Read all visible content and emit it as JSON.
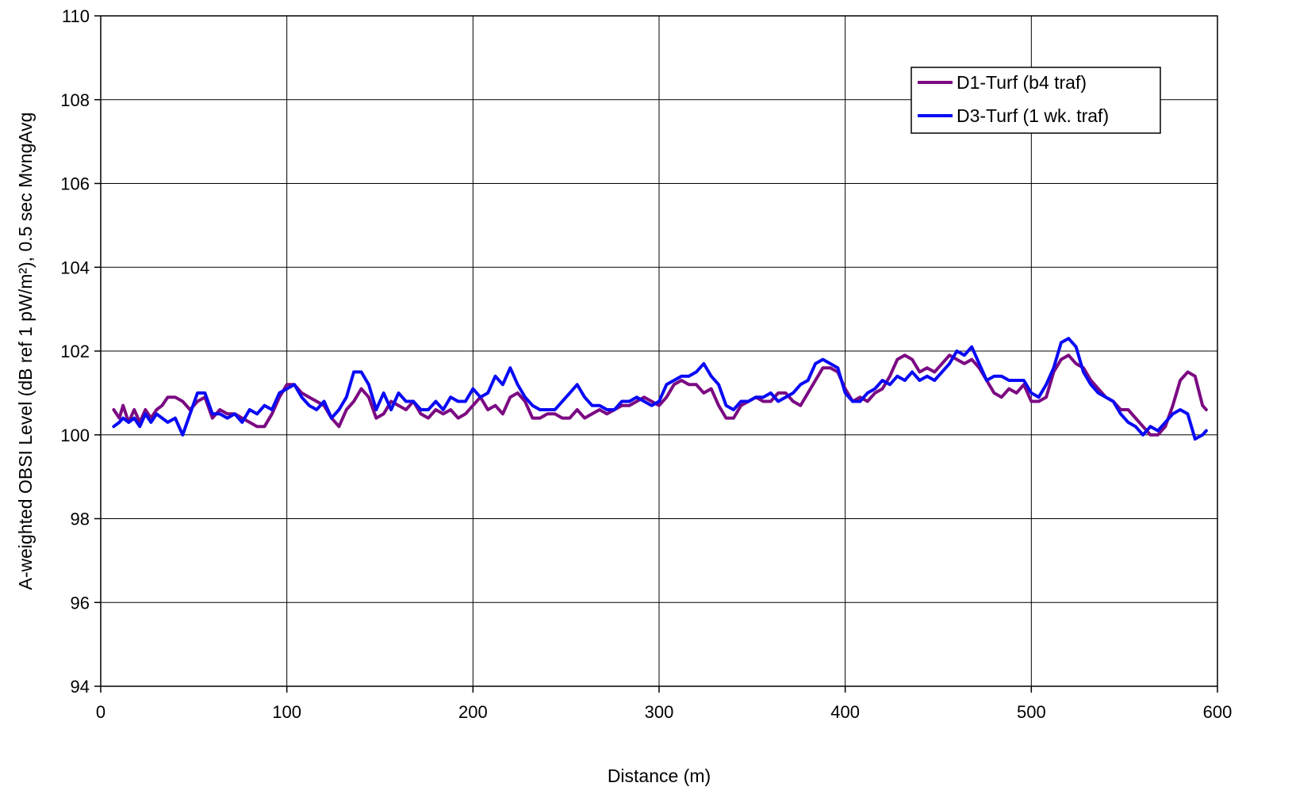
{
  "chart_data": {
    "type": "line",
    "title": "",
    "xlabel": "Distance (m)",
    "ylabel": "A-weighted OBSI Level (dB ref 1 pW/m²), 0.5 sec MvngAvg",
    "xlim": [
      0,
      600
    ],
    "ylim": [
      94,
      110
    ],
    "xticks": [
      0,
      100,
      200,
      300,
      400,
      500,
      600
    ],
    "yticks": [
      94,
      96,
      98,
      100,
      102,
      104,
      106,
      108,
      110
    ],
    "grid": true,
    "legend_position": "top-right",
    "series": [
      {
        "name": "D1-Turf (b4 traf)",
        "color": "#7B0A82",
        "x": [
          7,
          10,
          12,
          15,
          18,
          21,
          24,
          27,
          30,
          33,
          36,
          40,
          44,
          48,
          52,
          56,
          60,
          64,
          68,
          72,
          76,
          80,
          84,
          88,
          92,
          96,
          100,
          104,
          108,
          112,
          116,
          120,
          124,
          128,
          132,
          136,
          140,
          144,
          148,
          152,
          156,
          160,
          164,
          168,
          172,
          176,
          180,
          184,
          188,
          192,
          196,
          200,
          204,
          208,
          212,
          216,
          220,
          224,
          228,
          232,
          236,
          240,
          244,
          248,
          252,
          256,
          260,
          264,
          268,
          272,
          276,
          280,
          284,
          288,
          292,
          296,
          300,
          304,
          308,
          312,
          316,
          320,
          324,
          328,
          332,
          336,
          340,
          344,
          348,
          352,
          356,
          360,
          364,
          368,
          372,
          376,
          380,
          384,
          388,
          392,
          396,
          400,
          404,
          408,
          412,
          416,
          420,
          424,
          428,
          432,
          436,
          440,
          444,
          448,
          452,
          456,
          460,
          464,
          468,
          472,
          476,
          480,
          484,
          488,
          492,
          496,
          500,
          504,
          508,
          512,
          516,
          520,
          524,
          528,
          532,
          536,
          540,
          544,
          548,
          552,
          556,
          560,
          564,
          568,
          572,
          576,
          580,
          584,
          588,
          592,
          594
        ],
        "y": [
          100.6,
          100.4,
          100.7,
          100.3,
          100.6,
          100.3,
          100.6,
          100.4,
          100.6,
          100.7,
          100.9,
          100.9,
          100.8,
          100.6,
          100.8,
          100.9,
          100.4,
          100.6,
          100.5,
          100.5,
          100.4,
          100.3,
          100.2,
          100.2,
          100.5,
          100.9,
          101.2,
          101.2,
          101.0,
          100.9,
          100.8,
          100.7,
          100.4,
          100.2,
          100.6,
          100.8,
          101.1,
          100.9,
          100.4,
          100.5,
          100.8,
          100.7,
          100.6,
          100.8,
          100.5,
          100.4,
          100.6,
          100.5,
          100.6,
          100.4,
          100.5,
          100.7,
          100.9,
          100.6,
          100.7,
          100.5,
          100.9,
          101.0,
          100.8,
          100.4,
          100.4,
          100.5,
          100.5,
          100.4,
          100.4,
          100.6,
          100.4,
          100.5,
          100.6,
          100.5,
          100.6,
          100.7,
          100.7,
          100.8,
          100.9,
          100.8,
          100.7,
          100.9,
          101.2,
          101.3,
          101.2,
          101.2,
          101.0,
          101.1,
          100.7,
          100.4,
          100.4,
          100.7,
          100.8,
          100.9,
          100.8,
          100.8,
          101.0,
          101.0,
          100.8,
          100.7,
          101.0,
          101.3,
          101.6,
          101.6,
          101.5,
          101.1,
          100.8,
          100.9,
          100.8,
          101.0,
          101.1,
          101.4,
          101.8,
          101.9,
          101.8,
          101.5,
          101.6,
          101.5,
          101.7,
          101.9,
          101.8,
          101.7,
          101.8,
          101.6,
          101.3,
          101.0,
          100.9,
          101.1,
          101.0,
          101.2,
          100.8,
          100.8,
          100.9,
          101.5,
          101.8,
          101.9,
          101.7,
          101.6,
          101.3,
          101.1,
          100.9,
          100.8,
          100.6,
          100.6,
          100.4,
          100.2,
          100.0,
          100.0,
          100.2,
          100.7,
          101.3,
          101.5,
          101.4,
          100.7,
          100.6
        ],
        "line_width": 4
      },
      {
        "name": "D3-Turf (1 wk. traf)",
        "color": "#0A0AF5",
        "x": [
          7,
          10,
          12,
          15,
          18,
          21,
          24,
          27,
          30,
          33,
          36,
          40,
          44,
          48,
          52,
          56,
          60,
          64,
          68,
          72,
          76,
          80,
          84,
          88,
          92,
          96,
          100,
          104,
          108,
          112,
          116,
          120,
          124,
          128,
          132,
          136,
          140,
          144,
          148,
          152,
          156,
          160,
          164,
          168,
          172,
          176,
          180,
          184,
          188,
          192,
          196,
          200,
          204,
          208,
          212,
          216,
          220,
          224,
          228,
          232,
          236,
          240,
          244,
          248,
          252,
          256,
          260,
          264,
          268,
          272,
          276,
          280,
          284,
          288,
          292,
          296,
          300,
          304,
          308,
          312,
          316,
          320,
          324,
          328,
          332,
          336,
          340,
          344,
          348,
          352,
          356,
          360,
          364,
          368,
          372,
          376,
          380,
          384,
          388,
          392,
          396,
          400,
          404,
          408,
          412,
          416,
          420,
          424,
          428,
          432,
          436,
          440,
          444,
          448,
          452,
          456,
          460,
          464,
          468,
          472,
          476,
          480,
          484,
          488,
          492,
          496,
          500,
          504,
          508,
          512,
          516,
          520,
          524,
          528,
          532,
          536,
          540,
          544,
          548,
          552,
          556,
          560,
          564,
          568,
          572,
          576,
          580,
          584,
          588,
          592,
          594
        ],
        "y": [
          100.2,
          100.3,
          100.4,
          100.3,
          100.4,
          100.2,
          100.5,
          100.3,
          100.5,
          100.4,
          100.3,
          100.4,
          100.0,
          100.5,
          101.0,
          101.0,
          100.5,
          100.5,
          100.4,
          100.5,
          100.3,
          100.6,
          100.5,
          100.7,
          100.6,
          101.0,
          101.1,
          101.2,
          100.9,
          100.7,
          100.6,
          100.8,
          100.4,
          100.6,
          100.9,
          101.5,
          101.5,
          101.2,
          100.6,
          101.0,
          100.6,
          101.0,
          100.8,
          100.8,
          100.6,
          100.6,
          100.8,
          100.6,
          100.9,
          100.8,
          100.8,
          101.1,
          100.9,
          101.0,
          101.4,
          101.2,
          101.6,
          101.2,
          100.9,
          100.7,
          100.6,
          100.6,
          100.6,
          100.8,
          101.0,
          101.2,
          100.9,
          100.7,
          100.7,
          100.6,
          100.6,
          100.8,
          100.8,
          100.9,
          100.8,
          100.7,
          100.8,
          101.2,
          101.3,
          101.4,
          101.4,
          101.5,
          101.7,
          101.4,
          101.2,
          100.7,
          100.6,
          100.8,
          100.8,
          100.9,
          100.9,
          101.0,
          100.8,
          100.9,
          101.0,
          101.2,
          101.3,
          101.7,
          101.8,
          101.7,
          101.6,
          101.0,
          100.8,
          100.8,
          101.0,
          101.1,
          101.3,
          101.2,
          101.4,
          101.3,
          101.5,
          101.3,
          101.4,
          101.3,
          101.5,
          101.7,
          102.0,
          101.9,
          102.1,
          101.7,
          101.3,
          101.4,
          101.4,
          101.3,
          101.3,
          101.3,
          101.0,
          100.9,
          101.2,
          101.6,
          102.2,
          102.3,
          102.1,
          101.5,
          101.2,
          101.0,
          100.9,
          100.8,
          100.5,
          100.3,
          100.2,
          100.0,
          100.2,
          100.1,
          100.3,
          100.5,
          100.6,
          100.5,
          99.9,
          100.0,
          100.1
        ],
        "line_width": 4
      }
    ]
  }
}
